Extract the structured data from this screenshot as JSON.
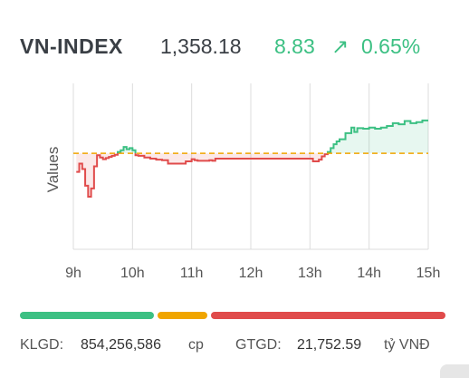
{
  "index": {
    "name": "VN-INDEX",
    "value": "1,358.18",
    "change": "8.83",
    "arrow": "↗",
    "percent": "0.65%",
    "up_color": "#3cc083",
    "down_color": "#e04b4b",
    "ref_color": "#f0a500"
  },
  "chart_data": {
    "type": "line",
    "ylabel": "Values",
    "x_ticks": [
      "9h",
      "10h",
      "11h",
      "12h",
      "13h",
      "14h",
      "15h"
    ],
    "reference": 1349.35,
    "ylim": [
      1332,
      1362
    ],
    "points": [
      [
        9.05,
        1346.0
      ],
      [
        9.1,
        1347.5
      ],
      [
        9.15,
        1346.5
      ],
      [
        9.2,
        1343.5
      ],
      [
        9.25,
        1341.5
      ],
      [
        9.3,
        1343.0
      ],
      [
        9.35,
        1347.0
      ],
      [
        9.4,
        1349.0
      ],
      [
        9.45,
        1348.6
      ],
      [
        9.5,
        1348.3
      ],
      [
        9.55,
        1348.5
      ],
      [
        9.6,
        1348.7
      ],
      [
        9.65,
        1348.9
      ],
      [
        9.7,
        1349.1
      ],
      [
        9.75,
        1349.6
      ],
      [
        9.8,
        1349.9
      ],
      [
        9.85,
        1350.5
      ],
      [
        9.9,
        1350.1
      ],
      [
        9.95,
        1350.3
      ],
      [
        10.0,
        1349.9
      ],
      [
        10.05,
        1349.0
      ],
      [
        10.1,
        1348.9
      ],
      [
        10.2,
        1348.6
      ],
      [
        10.3,
        1348.4
      ],
      [
        10.4,
        1348.2
      ],
      [
        10.5,
        1348.1
      ],
      [
        10.6,
        1347.5
      ],
      [
        10.7,
        1347.5
      ],
      [
        10.8,
        1347.5
      ],
      [
        10.9,
        1347.9
      ],
      [
        11.0,
        1348.3
      ],
      [
        11.05,
        1348.1
      ],
      [
        11.1,
        1348.0
      ],
      [
        11.2,
        1348.0
      ],
      [
        11.3,
        1348.1
      ],
      [
        11.35,
        1348.0
      ],
      [
        11.4,
        1348.4
      ],
      [
        11.5,
        1348.4
      ],
      [
        11.7,
        1348.4
      ],
      [
        11.9,
        1348.4
      ],
      [
        12.1,
        1348.4
      ],
      [
        12.3,
        1348.4
      ],
      [
        12.5,
        1348.4
      ],
      [
        12.7,
        1348.4
      ],
      [
        12.9,
        1348.4
      ],
      [
        13.0,
        1348.4
      ],
      [
        13.05,
        1347.9
      ],
      [
        13.1,
        1347.9
      ],
      [
        13.15,
        1348.2
      ],
      [
        13.2,
        1348.8
      ],
      [
        13.25,
        1349.2
      ],
      [
        13.3,
        1349.6
      ],
      [
        13.35,
        1350.3
      ],
      [
        13.4,
        1351.0
      ],
      [
        13.45,
        1351.5
      ],
      [
        13.5,
        1351.9
      ],
      [
        13.6,
        1353.0
      ],
      [
        13.7,
        1354.0
      ],
      [
        13.75,
        1353.2
      ],
      [
        13.8,
        1353.9
      ],
      [
        13.9,
        1353.8
      ],
      [
        14.0,
        1354.0
      ],
      [
        14.1,
        1353.8
      ],
      [
        14.2,
        1354.0
      ],
      [
        14.3,
        1354.3
      ],
      [
        14.4,
        1354.8
      ],
      [
        14.5,
        1354.6
      ],
      [
        14.6,
        1355.2
      ],
      [
        14.7,
        1354.8
      ],
      [
        14.8,
        1355.0
      ],
      [
        14.9,
        1355.3
      ],
      [
        15.0,
        1355.3
      ]
    ]
  },
  "breadth": {
    "up_share": 0.32,
    "flat_share": 0.12,
    "down_share": 0.56,
    "up_color": "#3cc083",
    "flat_color": "#f0a500",
    "down_color": "#e04b4b"
  },
  "stats": {
    "volume_label": "KLGD:",
    "volume_value": "854,256,586",
    "volume_unit": "cp",
    "turnover_label": "GTGD:",
    "turnover_value": "21,752.59",
    "turnover_unit": "tỷ VNĐ"
  }
}
